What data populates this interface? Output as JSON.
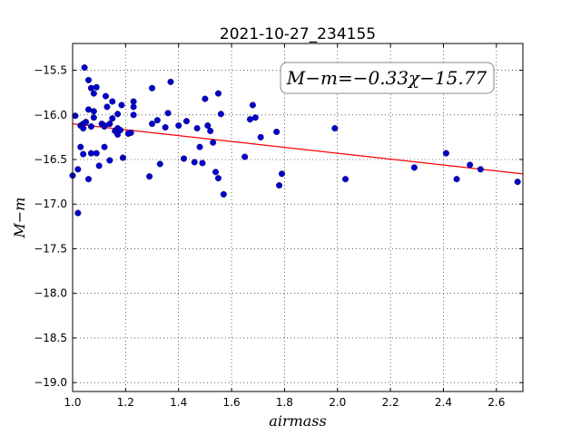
{
  "chart_data": {
    "type": "scatter",
    "title": "2021-10-27_234155",
    "xlabel": "airmass",
    "ylabel": "M−m",
    "xlim": [
      1.0,
      2.7
    ],
    "ylim": [
      -19.1,
      -15.2
    ],
    "y_inverted": true,
    "grid": true,
    "grid_style": "dotted",
    "x_ticks": [
      1.0,
      1.2,
      1.4,
      1.6,
      1.8,
      2.0,
      2.2,
      2.4,
      2.6
    ],
    "x_tick_labels": [
      "1.0",
      "1.2",
      "1.4",
      "1.6",
      "1.8",
      "2.0",
      "2.2",
      "2.4",
      "2.6"
    ],
    "y_ticks": [
      -15.5,
      -16.0,
      -16.5,
      -17.0,
      -17.5,
      -18.0,
      -18.5,
      -19.0
    ],
    "y_tick_labels": [
      "−15.5",
      "−16.0",
      "−16.5",
      "−17.0",
      "−17.5",
      "−18.0",
      "−18.5",
      "−19.0"
    ],
    "annotation": "M−m=−0.33χ−15.77",
    "annotation_placement": "top-right",
    "fit_line": {
      "slope": -0.33,
      "intercept": -15.77,
      "color": "#ff0000"
    },
    "marker_color": "#0000cc",
    "points": [
      [
        1.0,
        -16.68
      ],
      [
        1.01,
        -16.01
      ],
      [
        1.02,
        -16.61
      ],
      [
        1.02,
        -17.1
      ],
      [
        1.03,
        -16.12
      ],
      [
        1.03,
        -16.36
      ],
      [
        1.04,
        -16.1
      ],
      [
        1.04,
        -16.44
      ],
      [
        1.04,
        -16.15
      ],
      [
        1.045,
        -15.47
      ],
      [
        1.05,
        -16.08
      ],
      [
        1.06,
        -16.72
      ],
      [
        1.06,
        -15.61
      ],
      [
        1.06,
        -15.94
      ],
      [
        1.07,
        -16.13
      ],
      [
        1.07,
        -15.7
      ],
      [
        1.07,
        -16.43
      ],
      [
        1.08,
        -15.96
      ],
      [
        1.08,
        -16.03
      ],
      [
        1.08,
        -15.76
      ],
      [
        1.09,
        -15.69
      ],
      [
        1.09,
        -16.43
      ],
      [
        1.1,
        -16.57
      ],
      [
        1.11,
        -16.1
      ],
      [
        1.12,
        -16.12
      ],
      [
        1.12,
        -16.13
      ],
      [
        1.12,
        -16.36
      ],
      [
        1.125,
        -15.79
      ],
      [
        1.13,
        -15.91
      ],
      [
        1.14,
        -16.51
      ],
      [
        1.14,
        -16.1
      ],
      [
        1.15,
        -16.04
      ],
      [
        1.15,
        -15.85
      ],
      [
        1.16,
        -16.18
      ],
      [
        1.17,
        -15.99
      ],
      [
        1.17,
        -16.15
      ],
      [
        1.17,
        -16.22
      ],
      [
        1.18,
        -16.17
      ],
      [
        1.185,
        -15.89
      ],
      [
        1.19,
        -16.48
      ],
      [
        1.21,
        -16.21
      ],
      [
        1.22,
        -16.2
      ],
      [
        1.23,
        -16.0
      ],
      [
        1.23,
        -15.85
      ],
      [
        1.23,
        -15.91
      ],
      [
        1.29,
        -16.69
      ],
      [
        1.3,
        -15.7
      ],
      [
        1.3,
        -16.1
      ],
      [
        1.32,
        -16.06
      ],
      [
        1.33,
        -16.55
      ],
      [
        1.35,
        -16.14
      ],
      [
        1.36,
        -15.98
      ],
      [
        1.37,
        -15.63
      ],
      [
        1.4,
        -16.12
      ],
      [
        1.42,
        -16.49
      ],
      [
        1.43,
        -16.07
      ],
      [
        1.46,
        -16.53
      ],
      [
        1.47,
        -16.15
      ],
      [
        1.48,
        -16.36
      ],
      [
        1.49,
        -16.54
      ],
      [
        1.5,
        -15.82
      ],
      [
        1.51,
        -16.12
      ],
      [
        1.52,
        -16.18
      ],
      [
        1.53,
        -16.31
      ],
      [
        1.54,
        -16.64
      ],
      [
        1.55,
        -16.71
      ],
      [
        1.55,
        -15.76
      ],
      [
        1.56,
        -15.99
      ],
      [
        1.57,
        -16.89
      ],
      [
        1.65,
        -16.47
      ],
      [
        1.67,
        -16.05
      ],
      [
        1.68,
        -15.89
      ],
      [
        1.69,
        -16.03
      ],
      [
        1.71,
        -16.25
      ],
      [
        1.77,
        -16.19
      ],
      [
        1.78,
        -16.79
      ],
      [
        1.79,
        -16.66
      ],
      [
        1.99,
        -16.15
      ],
      [
        2.03,
        -16.72
      ],
      [
        2.29,
        -16.59
      ],
      [
        2.41,
        -16.43
      ],
      [
        2.45,
        -16.72
      ],
      [
        2.5,
        -16.56
      ],
      [
        2.54,
        -16.61
      ],
      [
        2.68,
        -16.75
      ]
    ]
  }
}
